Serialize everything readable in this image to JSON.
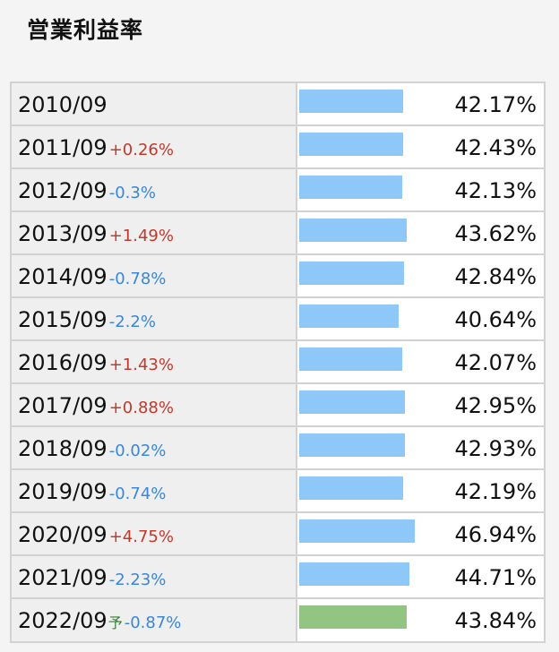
{
  "title": "営業利益率",
  "colors": {
    "bar_actual": "#8ec8f8",
    "bar_forecast": "#92c582",
    "change_positive": "#c0392b",
    "change_negative": "#3a86d8"
  },
  "rows": [
    {
      "year": "2010/09",
      "change": "",
      "direction": "",
      "forecast": false,
      "forecast_mark": "",
      "value": "42.17%",
      "rate": 42.17
    },
    {
      "year": "2011/09",
      "change": "+0.26%",
      "direction": "pos",
      "forecast": false,
      "forecast_mark": "",
      "value": "42.43%",
      "rate": 42.43
    },
    {
      "year": "2012/09",
      "change": "-0.3%",
      "direction": "neg",
      "forecast": false,
      "forecast_mark": "",
      "value": "42.13%",
      "rate": 42.13
    },
    {
      "year": "2013/09",
      "change": "+1.49%",
      "direction": "pos",
      "forecast": false,
      "forecast_mark": "",
      "value": "43.62%",
      "rate": 43.62
    },
    {
      "year": "2014/09",
      "change": "-0.78%",
      "direction": "neg",
      "forecast": false,
      "forecast_mark": "",
      "value": "42.84%",
      "rate": 42.84
    },
    {
      "year": "2015/09",
      "change": "-2.2%",
      "direction": "neg",
      "forecast": false,
      "forecast_mark": "",
      "value": "40.64%",
      "rate": 40.64
    },
    {
      "year": "2016/09",
      "change": "+1.43%",
      "direction": "pos",
      "forecast": false,
      "forecast_mark": "",
      "value": "42.07%",
      "rate": 42.07
    },
    {
      "year": "2017/09",
      "change": "+0.88%",
      "direction": "pos",
      "forecast": false,
      "forecast_mark": "",
      "value": "42.95%",
      "rate": 42.95
    },
    {
      "year": "2018/09",
      "change": "-0.02%",
      "direction": "neg",
      "forecast": false,
      "forecast_mark": "",
      "value": "42.93%",
      "rate": 42.93
    },
    {
      "year": "2019/09",
      "change": "-0.74%",
      "direction": "neg",
      "forecast": false,
      "forecast_mark": "",
      "value": "42.19%",
      "rate": 42.19
    },
    {
      "year": "2020/09",
      "change": "+4.75%",
      "direction": "pos",
      "forecast": false,
      "forecast_mark": "",
      "value": "46.94%",
      "rate": 46.94
    },
    {
      "year": "2021/09",
      "change": "-2.23%",
      "direction": "neg",
      "forecast": false,
      "forecast_mark": "",
      "value": "44.71%",
      "rate": 44.71
    },
    {
      "year": "2022/09",
      "change": "-0.87%",
      "direction": "neg",
      "forecast": true,
      "forecast_mark": "予",
      "value": "43.84%",
      "rate": 43.84
    }
  ]
}
